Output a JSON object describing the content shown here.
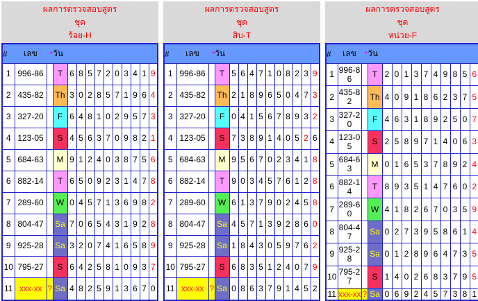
{
  "colors": {
    "grid_border": "#2222CC",
    "table_header_bg": "#6699FF",
    "panel_header_bg": "#D9D9D9",
    "title_text": "#FF0000",
    "star_text": "#FF00FF",
    "red_digit": "#FF0000",
    "highlight_bg": "#FFFF00",
    "highlight_text": "#FF2222"
  },
  "day_styles": {
    "T": {
      "bg": "#FF99FF",
      "fg": "#000000"
    },
    "Th": {
      "bg": "#FFBB55",
      "fg": "#000000"
    },
    "F": {
      "bg": "#55FFFF",
      "fg": "#000000"
    },
    "S": {
      "bg": "#F8305C",
      "fg": "#000000"
    },
    "M": {
      "bg": "#FFFFCC",
      "fg": "#000000"
    },
    "W": {
      "bg": "#55EE55",
      "fg": "#000000"
    },
    "Sa": {
      "bg": "#6E6EC8",
      "fg": "#FFFF00"
    }
  },
  "header_cols": {
    "index": "#",
    "number": "เลข",
    "star": "*",
    "day": "วัน"
  },
  "panels": [
    {
      "name": "hundreds-h",
      "title_line1": "ผลการตรวจสอบสูตร",
      "title_line2": "ชุด",
      "title_line3": "ร้อย-H",
      "rows": [
        {
          "index": "1",
          "number": "996-86",
          "flag": "",
          "day": "T",
          "digits": [
            "6",
            "8",
            "5",
            "7",
            "2",
            "0",
            "3",
            "4",
            "1",
            "9"
          ],
          "red_index": 9
        },
        {
          "index": "2",
          "number": "435-82",
          "flag": "",
          "day": "Th",
          "digits": [
            "3",
            "0",
            "2",
            "8",
            "5",
            "7",
            "1",
            "9",
            "6",
            "4"
          ],
          "red_index": 9
        },
        {
          "index": "3",
          "number": "327-20",
          "flag": "",
          "day": "F",
          "digits": [
            "6",
            "4",
            "8",
            "1",
            "0",
            "2",
            "9",
            "5",
            "7",
            "3"
          ],
          "red_index": 9
        },
        {
          "index": "4",
          "number": "123-05",
          "flag": "",
          "day": "S",
          "digits": [
            "4",
            "5",
            "6",
            "3",
            "7",
            "0",
            "9",
            "8",
            "2",
            "1"
          ],
          "red_index": 9
        },
        {
          "index": "5",
          "number": "684-63",
          "flag": "",
          "day": "M",
          "digits": [
            "9",
            "1",
            "2",
            "4",
            "0",
            "3",
            "8",
            "7",
            "5",
            "6"
          ],
          "red_index": 9
        },
        {
          "index": "6",
          "number": "882-14",
          "flag": "",
          "day": "T",
          "digits": [
            "6",
            "5",
            "0",
            "9",
            "2",
            "3",
            "1",
            "4",
            "7",
            "8"
          ],
          "red_index": 9
        },
        {
          "index": "7",
          "number": "289-60",
          "flag": "",
          "day": "W",
          "digits": [
            "0",
            "4",
            "5",
            "7",
            "1",
            "3",
            "6",
            "9",
            "8",
            "2"
          ],
          "red_index": 9
        },
        {
          "index": "8",
          "number": "804-47",
          "flag": "",
          "day": "Sa",
          "digits": [
            "7",
            "0",
            "6",
            "5",
            "4",
            "3",
            "1",
            "9",
            "2",
            "8"
          ],
          "red_index": 9
        },
        {
          "index": "9",
          "number": "925-28",
          "flag": "",
          "day": "Sa",
          "digits": [
            "3",
            "2",
            "0",
            "7",
            "4",
            "1",
            "6",
            "5",
            "8",
            "9"
          ],
          "red_index": 9
        },
        {
          "index": "10",
          "number": "795-27",
          "flag": "",
          "day": "S",
          "digits": [
            "6",
            "4",
            "2",
            "5",
            "8",
            "1",
            "0",
            "9",
            "3",
            "7"
          ],
          "red_index": 9
        },
        {
          "index": "11",
          "number": "xxx-xx",
          "flag": "?",
          "day": "Sa",
          "digits": [
            "4",
            "8",
            "2",
            "5",
            "9",
            "1",
            "3",
            "6",
            "7",
            "0"
          ],
          "red_index": -1,
          "highlight": true
        }
      ]
    },
    {
      "name": "tens-t",
      "title_line1": "ผลการตรวจสอบสูตร",
      "title_line2": "ชุด",
      "title_line3": "สิบ-T",
      "rows": [
        {
          "index": "1",
          "number": "996-86",
          "flag": "",
          "day": "T",
          "digits": [
            "5",
            "6",
            "4",
            "7",
            "1",
            "0",
            "8",
            "2",
            "3",
            "9"
          ],
          "red_index": 9
        },
        {
          "index": "2",
          "number": "435-82",
          "flag": "",
          "day": "Th",
          "digits": [
            "2",
            "1",
            "8",
            "9",
            "6",
            "5",
            "0",
            "4",
            "7",
            "3"
          ],
          "red_index": 9
        },
        {
          "index": "3",
          "number": "327-20",
          "flag": "",
          "day": "F",
          "digits": [
            "0",
            "4",
            "1",
            "5",
            "6",
            "7",
            "8",
            "9",
            "3",
            "2"
          ],
          "red_index": 9
        },
        {
          "index": "4",
          "number": "123-05",
          "flag": "",
          "day": "S",
          "digits": [
            "7",
            "3",
            "8",
            "9",
            "1",
            "4",
            "0",
            "5",
            "2",
            "6"
          ],
          "red_index": 8
        },
        {
          "index": "5",
          "number": "684-63",
          "flag": "",
          "day": "M",
          "digits": [
            "9",
            "5",
            "6",
            "7",
            "0",
            "2",
            "3",
            "4",
            "1",
            "8"
          ],
          "red_index": 9
        },
        {
          "index": "6",
          "number": "882-14",
          "flag": "",
          "day": "T",
          "digits": [
            "9",
            "0",
            "3",
            "4",
            "5",
            "7",
            "6",
            "1",
            "2",
            "8"
          ],
          "red_index": 9
        },
        {
          "index": "7",
          "number": "289-60",
          "flag": "",
          "day": "W",
          "digits": [
            "6",
            "1",
            "3",
            "7",
            "9",
            "0",
            "2",
            "4",
            "5",
            "8"
          ],
          "red_index": 9
        },
        {
          "index": "8",
          "number": "804-47",
          "flag": "",
          "day": "Sa",
          "digits": [
            "4",
            "5",
            "7",
            "1",
            "3",
            "9",
            "2",
            "8",
            "6",
            "0"
          ],
          "red_index": 9
        },
        {
          "index": "9",
          "number": "925-28",
          "flag": "",
          "day": "Sa",
          "digits": [
            "1",
            "8",
            "4",
            "3",
            "0",
            "5",
            "9",
            "7",
            "6",
            "2"
          ],
          "red_index": 9
        },
        {
          "index": "10",
          "number": "795-27",
          "flag": "",
          "day": "S",
          "digits": [
            "6",
            "8",
            "3",
            "5",
            "1",
            "2",
            "4",
            "0",
            "7",
            "9"
          ],
          "red_index": 9
        },
        {
          "index": "11",
          "number": "xxx-xx",
          "flag": "?",
          "day": "Sa",
          "digits": [
            "0",
            "8",
            "6",
            "3",
            "7",
            "9",
            "1",
            "4",
            "5",
            "2"
          ],
          "red_index": -1,
          "highlight": true
        }
      ]
    },
    {
      "name": "units-f",
      "title_line1": "ผลการตรวจสอบสูตร",
      "title_line2": "ชุด",
      "title_line3": "หน่วย-F",
      "rows": [
        {
          "index": "1",
          "number": "996-86",
          "flag": "",
          "day": "T",
          "digits": [
            "2",
            "0",
            "1",
            "3",
            "7",
            "4",
            "9",
            "8",
            "5",
            "6"
          ],
          "red_index": 9
        },
        {
          "index": "2",
          "number": "435-82",
          "flag": "",
          "day": "Th",
          "digits": [
            "4",
            "0",
            "9",
            "1",
            "8",
            "6",
            "2",
            "3",
            "7",
            "5"
          ],
          "red_index": 9
        },
        {
          "index": "3",
          "number": "327-20",
          "flag": "",
          "day": "F",
          "digits": [
            "4",
            "6",
            "3",
            "1",
            "8",
            "9",
            "2",
            "5",
            "0",
            "7"
          ],
          "red_index": 9
        },
        {
          "index": "4",
          "number": "123-05",
          "flag": "",
          "day": "S",
          "digits": [
            "2",
            "5",
            "8",
            "9",
            "7",
            "1",
            "4",
            "0",
            "6",
            "3"
          ],
          "red_index": 9
        },
        {
          "index": "5",
          "number": "684-63",
          "flag": "",
          "day": "M",
          "digits": [
            "0",
            "1",
            "6",
            "5",
            "3",
            "7",
            "8",
            "9",
            "2",
            "4"
          ],
          "red_index": 9
        },
        {
          "index": "6",
          "number": "882-14",
          "flag": "",
          "day": "T",
          "digits": [
            "8",
            "9",
            "3",
            "5",
            "1",
            "4",
            "7",
            "6",
            "0",
            "2"
          ],
          "red_index": 9
        },
        {
          "index": "7",
          "number": "289-60",
          "flag": "",
          "day": "W",
          "digits": [
            "4",
            "1",
            "8",
            "2",
            "6",
            "7",
            "0",
            "3",
            "5",
            "9"
          ],
          "red_index": 9
        },
        {
          "index": "8",
          "number": "804-47",
          "flag": "",
          "day": "Sa",
          "digits": [
            "0",
            "2",
            "7",
            "3",
            "9",
            "5",
            "8",
            "6",
            "1",
            "4"
          ],
          "red_index": 9
        },
        {
          "index": "9",
          "number": "925-28",
          "flag": "",
          "day": "Sa",
          "digits": [
            "0",
            "1",
            "2",
            "8",
            "9",
            "6",
            "4",
            "7",
            "3",
            "5"
          ],
          "red_index": 9
        },
        {
          "index": "10",
          "number": "795-27",
          "flag": "",
          "day": "S",
          "digits": [
            "1",
            "4",
            "0",
            "2",
            "6",
            "8",
            "3",
            "7",
            "9",
            "5"
          ],
          "red_index": 9
        },
        {
          "index": "11",
          "number": "xxx-xx",
          "flag": "?",
          "day": "Sa",
          "digits": [
            "0",
            "6",
            "9",
            "2",
            "4",
            "5",
            "7",
            "3",
            "8",
            "1"
          ],
          "red_index": -1,
          "highlight": true
        }
      ]
    }
  ]
}
